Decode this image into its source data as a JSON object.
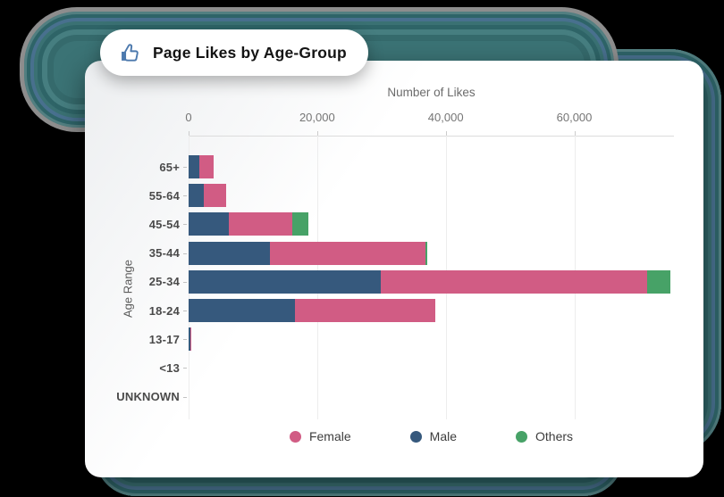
{
  "badge": {
    "label": "Page Likes by Age-Group",
    "icon": "thumbs-up-icon",
    "icon_color": "#4c79ad"
  },
  "chart_data": {
    "type": "bar",
    "orientation": "horizontal",
    "title": "Number of Likes",
    "xlabel": "Number of Likes",
    "ylabel": "Age Range",
    "categories": [
      "65+",
      "55-64",
      "45-54",
      "35-44",
      "25-34",
      "18-24",
      "13-17",
      "<13",
      "UNKNOWN"
    ],
    "series": [
      {
        "name": "Male",
        "color": "#36597d",
        "values": [
          1700,
          2300,
          6300,
          12600,
          29900,
          16600,
          250,
          0,
          0
        ]
      },
      {
        "name": "Female",
        "color": "#d15c84",
        "values": [
          2200,
          3500,
          9900,
          24200,
          41400,
          21800,
          150,
          0,
          0
        ]
      },
      {
        "name": "Others",
        "color": "#47a267",
        "values": [
          0,
          0,
          2500,
          350,
          3600,
          0,
          0,
          0,
          0
        ]
      }
    ],
    "legend": [
      {
        "name": "Female",
        "color": "#d15c84"
      },
      {
        "name": "Male",
        "color": "#36597d"
      },
      {
        "name": "Others",
        "color": "#47a267"
      }
    ],
    "x_ticks": [
      {
        "value": 0,
        "label": "0"
      },
      {
        "value": 20000,
        "label": "20,000"
      },
      {
        "value": 40000,
        "label": "40,000"
      },
      {
        "value": 60000,
        "label": "60,000"
      }
    ],
    "xlim": [
      0,
      75500
    ],
    "grid": true,
    "legend_position": "bottom"
  },
  "colors": {
    "background": "#000000",
    "card": "#ffffff",
    "decor_teal": "#3b7375",
    "decor_outline": "#8d8d8d",
    "axis_text": "#757575",
    "category_text": "#4a4a4a"
  }
}
